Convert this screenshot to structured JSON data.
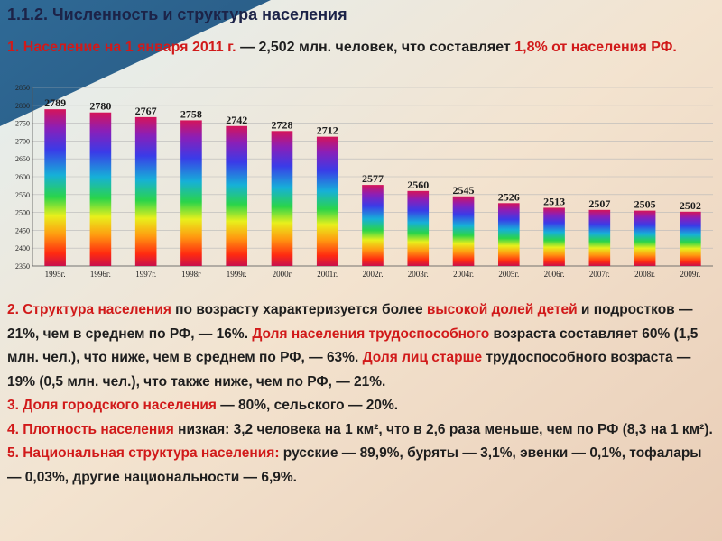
{
  "title": "1.1.2. Численность и структура населения",
  "para1": {
    "part1": "1. Население на 1 января 2011 г.",
    "part2": " — 2,502 млн. человек, что составляет ",
    "part3": "1,8% от населения РФ."
  },
  "para2": {
    "h1": "2. Структура населения",
    "t1": " по возрасту характеризуется более ",
    "h2": "высокой долей детей",
    "t2": " и подростков — 21%, чем в среднем по РФ, — 16%. ",
    "h3": "Доля населения трудоспособного",
    "t3": " возраста составляет 60% (1,5 млн. чел.), что ниже, чем в среднем по РФ, — 63%. ",
    "h4": "Доля лиц старше",
    "t4": " трудоспособного возраста — 19% (0,5 млн. чел.), что также ниже, чем по РФ, — 21%."
  },
  "para3": {
    "h1": "3. Доля городского населения",
    "t1": " — 80%, сельского — 20%."
  },
  "para4": {
    "h1": "4. Плотность населения",
    "t1": " низкая: 3,2 человека на 1 км², что в 2,6 раза меньше, чем по РФ (8,3 на 1 км²)."
  },
  "para5": {
    "h1": "5. Национальная структура населения:",
    "t1": " русские — 89,9%, буряты — 3,1%, эвенки — 0,1%, тофалары — 0,03%, другие национальности — 6,9%."
  },
  "chart_data": {
    "type": "bar",
    "categories": [
      "1995г.",
      "1996г.",
      "1997г.",
      "1998г",
      "1999г.",
      "2000г",
      "2001г.",
      "2002г.",
      "2003г.",
      "2004г.",
      "2005г.",
      "2006г.",
      "2007г.",
      "2008г.",
      "2009г."
    ],
    "values": [
      2789,
      2780,
      2767,
      2758,
      2742,
      2728,
      2712,
      2577,
      2560,
      2545,
      2526,
      2513,
      2507,
      2505,
      2502
    ],
    "ylim": [
      2350,
      2850
    ],
    "yticks": [
      2350,
      2400,
      2450,
      2500,
      2550,
      2600,
      2650,
      2700,
      2750,
      2800,
      2850
    ],
    "grid": true,
    "title": "",
    "xlabel": "",
    "ylabel": ""
  },
  "colors": {
    "bg_left": "#edd6c3",
    "bg_right": "#1e3a66",
    "highlight": "#d11a1a",
    "title": "#1c2348"
  }
}
